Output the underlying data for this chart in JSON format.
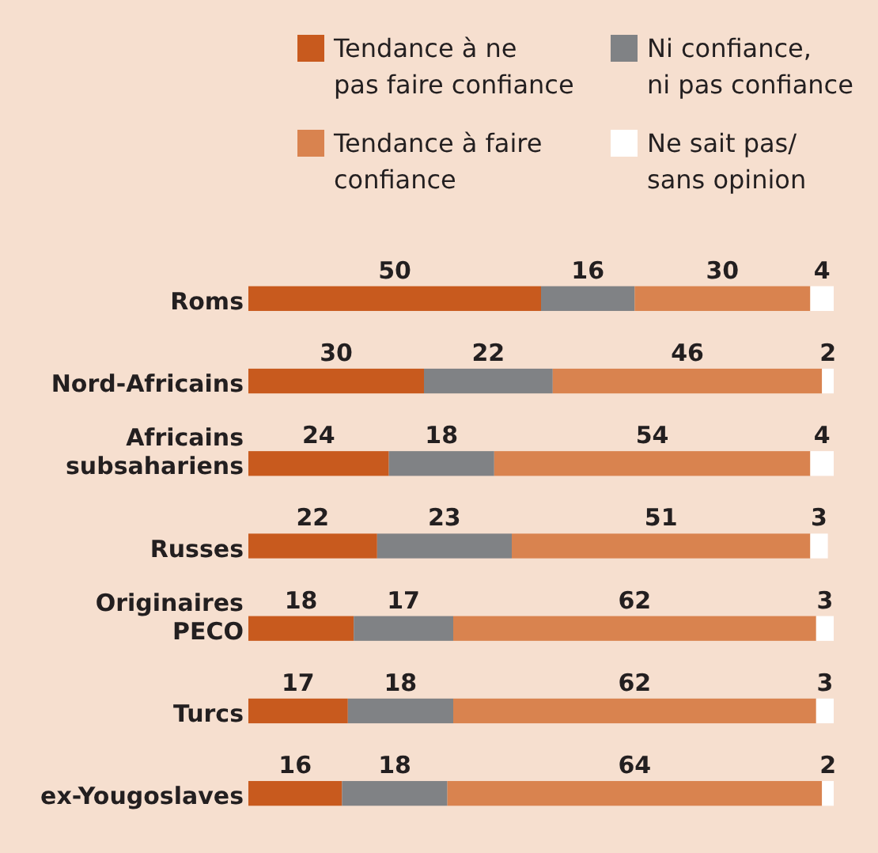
{
  "chart_data": {
    "type": "bar",
    "orientation": "horizontal",
    "stacked": true,
    "data_labels": true,
    "legend": "top",
    "categories": [
      "Roms",
      "Nord-Africains",
      "Africains subsahariens",
      "Russes",
      "Originaires PECO",
      "Turcs",
      "ex-Yougoslaves"
    ],
    "series": [
      {
        "name": "Tendance à ne pas faire confiance",
        "color": "#c85a1e",
        "values": [
          50,
          30,
          24,
          22,
          18,
          17,
          16
        ]
      },
      {
        "name": "Ni confiance, ni pas confiance",
        "color": "#808285",
        "values": [
          16,
          22,
          18,
          23,
          17,
          18,
          18
        ]
      },
      {
        "name": "Tendance à faire confiance",
        "color": "#d9834f",
        "values": [
          30,
          46,
          54,
          51,
          62,
          62,
          64
        ]
      },
      {
        "name": "Ne sait pas/ sans opinion",
        "color": "#ffffff",
        "values": [
          4,
          2,
          4,
          3,
          3,
          3,
          2
        ]
      }
    ]
  }
}
